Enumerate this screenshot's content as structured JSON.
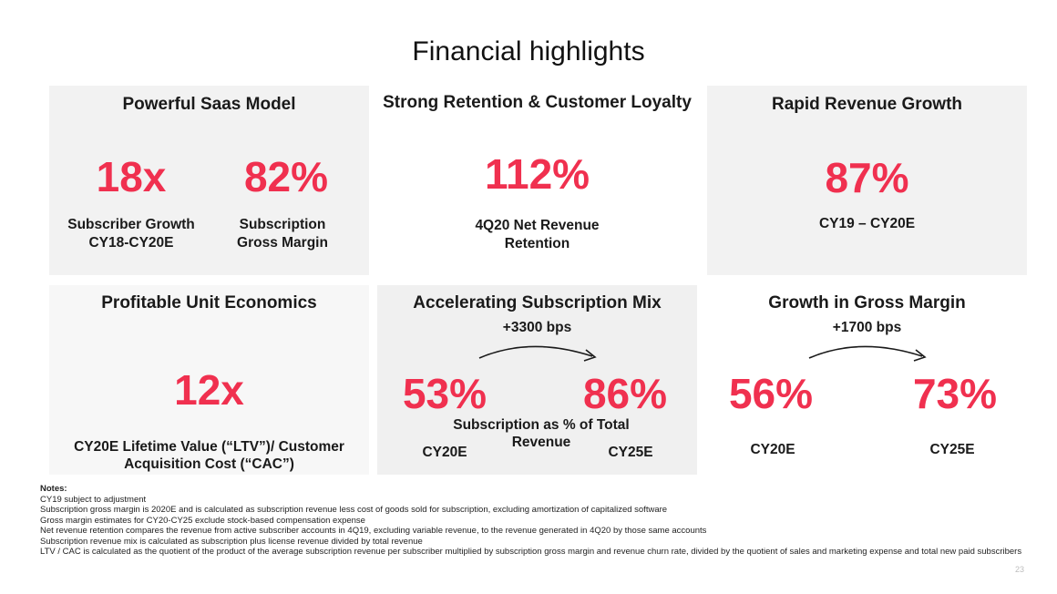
{
  "title": "Financial highlights",
  "colors": {
    "accent": "#f0304f",
    "panel_gray": "#f2f2f2"
  },
  "panels": {
    "saas": {
      "title": "Powerful Saas Model",
      "metric1": {
        "value": "18x",
        "caption1": "Subscriber Growth",
        "caption2": "CY18-CY20E"
      },
      "metric2": {
        "value": "82%",
        "caption1": "Subscription",
        "caption2": "Gross Margin"
      }
    },
    "retention": {
      "title": "Strong Retention & Customer Loyalty",
      "value": "112%",
      "caption1": "4Q20 Net Revenue",
      "caption2": "Retention"
    },
    "growth": {
      "title": "Rapid Revenue Growth",
      "value": "87%",
      "caption": "CY19 – CY20E"
    },
    "unit": {
      "title": "Profitable Unit Economics",
      "value": "12x",
      "caption1": "CY20E Lifetime Value (“LTV”)/ Customer",
      "caption2": "Acquisition Cost (“CAC”)"
    },
    "mix": {
      "title": "Accelerating Subscription Mix",
      "delta": "+3300 bps",
      "from_value": "53%",
      "to_value": "86%",
      "caption1": "Subscription as % of Total",
      "caption2": "Revenue",
      "from_label": "CY20E",
      "to_label": "CY25E"
    },
    "margin": {
      "title": "Growth in Gross Margin",
      "delta": "+1700 bps",
      "from_value": "56%",
      "to_value": "73%",
      "from_label": "CY20E",
      "to_label": "CY25E"
    }
  },
  "notes": {
    "heading": "Notes:",
    "items": [
      "CY19 subject to adjustment",
      "Subscription gross margin is 2020E and is calculated as subscription revenue less cost of goods sold for subscription, excluding amortization of capitalized software",
      "Gross margin estimates for CY20-CY25 exclude stock-based compensation expense",
      "Net revenue retention compares the revenue from active subscriber accounts in 4Q19, excluding variable revenue, to the revenue generated in 4Q20 by those same accounts",
      "Subscription revenue mix is calculated as subscription plus license revenue divided by total revenue",
      "LTV / CAC is calculated as the quotient of the product of the average subscription revenue per subscriber multiplied by subscription gross margin and revenue churn rate, divided by the quotient of sales and marketing expense and total new paid subscribers"
    ]
  },
  "page_number": "23"
}
